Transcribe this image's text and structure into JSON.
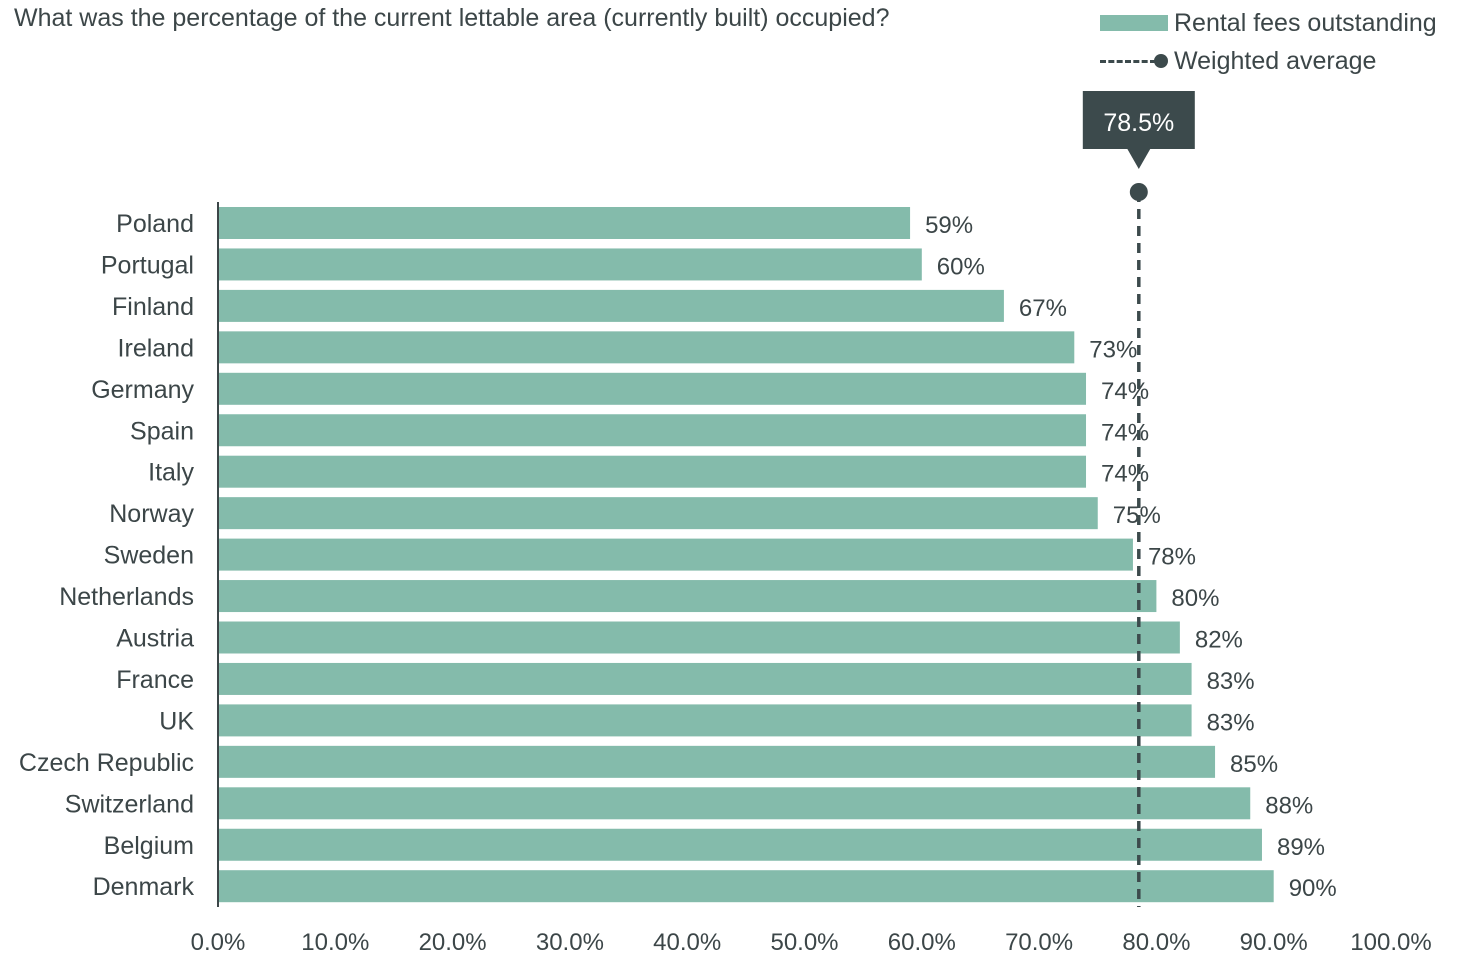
{
  "title": "What was the percentage of the current lettable area (currently built) occupied?",
  "legend": {
    "bars_label": "Rental fees outstanding",
    "line_label": "Weighted average"
  },
  "colors": {
    "bar": "#84bbab",
    "line": "#3c4a4c",
    "text": "#3c4648",
    "callout_bg": "#3c4a4c"
  },
  "chart_data": {
    "type": "bar",
    "orientation": "horizontal",
    "title": "What was the percentage of the current lettable area (currently built) occupied?",
    "categories": [
      "Poland",
      "Portugal",
      "Finland",
      "Ireland",
      "Germany",
      "Spain",
      "Italy",
      "Norway",
      "Sweden",
      "Netherlands",
      "Austria",
      "France",
      "UK",
      "Czech Republic",
      "Switzerland",
      "Belgium",
      "Denmark"
    ],
    "values": [
      59,
      60,
      67,
      73,
      74,
      74,
      74,
      75,
      78,
      80,
      82,
      83,
      83,
      85,
      88,
      89,
      90
    ],
    "value_labels": [
      "59%",
      "60%",
      "67%",
      "73%",
      "74%",
      "74%",
      "74%",
      "75%",
      "78%",
      "80%",
      "82%",
      "83%",
      "83%",
      "85%",
      "88%",
      "89%",
      "90%"
    ],
    "series_name": "Rental fees outstanding",
    "reference_line": {
      "name": "Weighted average",
      "value": 78.5,
      "label": "78.5%"
    },
    "xlim": [
      0,
      100
    ],
    "x_ticks": [
      "0.0%",
      "10.0%",
      "20.0%",
      "30.0%",
      "40.0%",
      "50.0%",
      "60.0%",
      "70.0%",
      "80.0%",
      "90.0%",
      "100.0%"
    ],
    "grid": false,
    "legend_position": "top-right"
  }
}
